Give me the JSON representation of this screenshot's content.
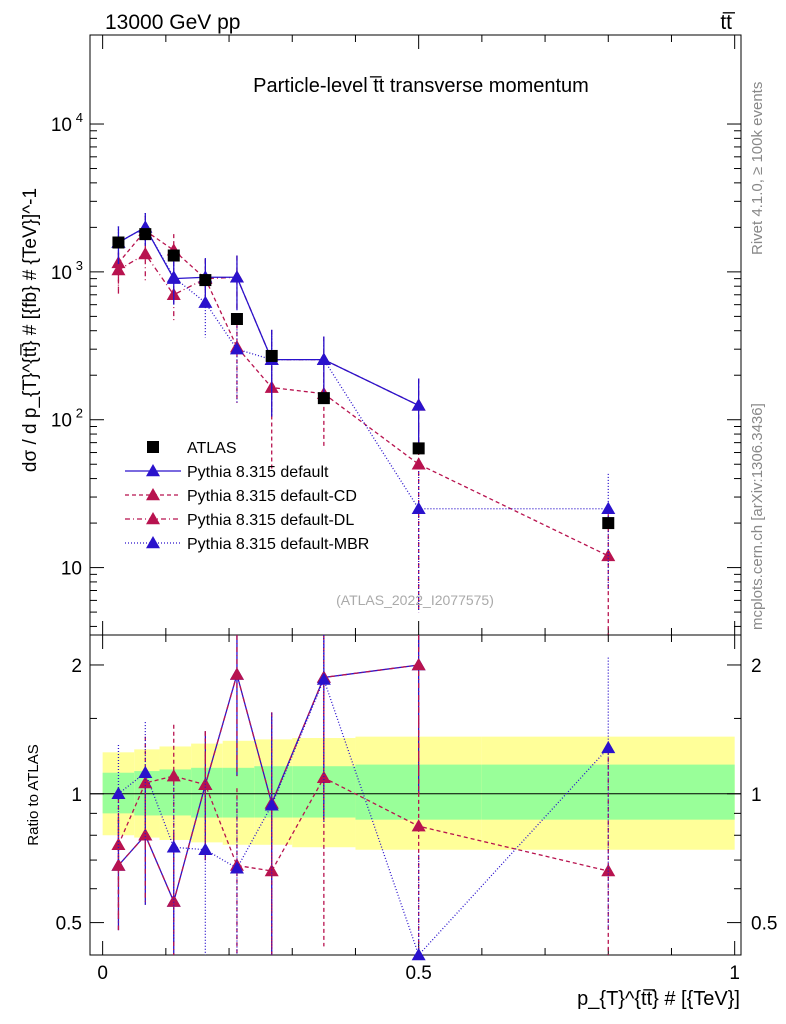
{
  "header": {
    "left": "13000 GeV pp",
    "right": "tt̅"
  },
  "side_labels": {
    "rivet": "Rivet 4.1.0, ≥ 100k events",
    "mcplots": "mcplots.cern.ch [arXiv:1306.3436]"
  },
  "chart_data": [
    {
      "type": "line",
      "panel": "main",
      "title": "Particle-level t̅t transverse momentum",
      "watermark": "(ATLAS_2022_I2077575)",
      "ylabel": "dσ / d p_{T}^{tt̅} # [{fb} # {TeV}]^-1",
      "yscale": "log",
      "ylim": [
        3.5,
        40000
      ],
      "xlim": [
        -0.02,
        1.01
      ],
      "yticks": [
        {
          "value": 10,
          "label": "10"
        },
        {
          "value": 100,
          "label": "10",
          "exp": "2"
        },
        {
          "value": 1000,
          "label": "10",
          "exp": "3"
        },
        {
          "value": 10000,
          "label": "10",
          "exp": "4"
        }
      ],
      "legend_position": "center-left",
      "series": [
        {
          "name": "ATLAS",
          "marker": "square",
          "color": "#000000",
          "dash": "none",
          "x": [
            0.025,
            0.0675,
            0.1125,
            0.1625,
            0.2125,
            0.2675,
            0.35,
            0.5,
            0.8
          ],
          "y": [
            1580,
            1800,
            1290,
            880,
            480,
            270,
            140,
            64,
            20
          ],
          "err": [
            0,
            0,
            0,
            0,
            0,
            0,
            0,
            0,
            0
          ]
        },
        {
          "name": "Pythia 8.315 default",
          "marker": "triangle",
          "color": "#2a12cc",
          "dash": "none",
          "x": [
            0.025,
            0.0675,
            0.1125,
            0.1625,
            0.2125,
            0.2675,
            0.35,
            0.5,
            0.8
          ],
          "y": [
            1580,
            2000,
            900,
            920,
            920,
            255,
            255,
            125,
            null
          ],
          "err": [
            450,
            500,
            300,
            320,
            370,
            150,
            110,
            65,
            null
          ]
        },
        {
          "name": "Pythia 8.315 default-CD",
          "marker": "triangle",
          "color": "#b8134f",
          "dash": "4,3",
          "x": [
            0.025,
            0.0675,
            0.1125,
            0.1625,
            0.2125,
            0.2675,
            0.35,
            0.5,
            0.8
          ],
          "y": [
            1150,
            1900,
            1400,
            900,
            310,
            165,
            150,
            50,
            12
          ],
          "err": [
            380,
            500,
            400,
            320,
            180,
            120,
            85,
            45,
            11
          ]
        },
        {
          "name": "Pythia 8.315 default-DL",
          "marker": "triangle",
          "color": "#b8134f",
          "dash": "5,3,1,3",
          "x": [
            0.025,
            0.0675,
            0.1125,
            0.1625,
            0.2125,
            0.2675,
            0.35,
            0.5,
            0.8
          ],
          "y": [
            1030,
            1320,
            700,
            900,
            920,
            255,
            255,
            125,
            null
          ],
          "err": [
            320,
            450,
            250,
            320,
            370,
            150,
            110,
            65,
            null
          ]
        },
        {
          "name": "Pythia 8.315 default-MBR",
          "marker": "triangle",
          "color": "#2a12cc",
          "dash": "1,2",
          "x": [
            0.025,
            0.0675,
            0.1125,
            0.1625,
            0.2125,
            0.2675,
            0.35,
            0.5,
            0.8
          ],
          "y": [
            1580,
            2000,
            920,
            620,
            300,
            255,
            255,
            25,
            25
          ],
          "err": [
            450,
            500,
            300,
            260,
            170,
            150,
            110,
            20,
            18
          ]
        }
      ]
    },
    {
      "type": "line",
      "panel": "ratio",
      "ylabel": "Ratio to ATLAS",
      "xlabel": "p_{T}^{tt̅} # [{TeV}]",
      "yscale": "log",
      "ylim": [
        0.42,
        2.35
      ],
      "xlim": [
        -0.02,
        1.01
      ],
      "xticks": [
        {
          "value": 0,
          "label": "0"
        },
        {
          "value": 0.5,
          "label": "0.5"
        },
        {
          "value": 1,
          "label": "1"
        }
      ],
      "yticks": [
        {
          "value": 0.5,
          "label": "0.5"
        },
        {
          "value": 1,
          "label": "1"
        },
        {
          "value": 2,
          "label": "2"
        }
      ],
      "bands": {
        "outer_color": "#ffff99",
        "inner_color": "#99ff99",
        "x_edges": [
          0,
          0.05,
          0.09,
          0.14,
          0.19,
          0.24,
          0.3,
          0.4,
          0.6,
          1.0
        ],
        "outer_lo": [
          0.8,
          0.79,
          0.78,
          0.77,
          0.76,
          0.76,
          0.75,
          0.74,
          0.74
        ],
        "outer_hi": [
          1.25,
          1.27,
          1.29,
          1.31,
          1.33,
          1.34,
          1.35,
          1.36,
          1.36
        ],
        "inner_lo": [
          0.9,
          0.89,
          0.89,
          0.88,
          0.88,
          0.88,
          0.88,
          0.87,
          0.87
        ],
        "inner_hi": [
          1.12,
          1.13,
          1.14,
          1.15,
          1.15,
          1.16,
          1.16,
          1.17,
          1.17
        ]
      },
      "series": [
        {
          "name": "Pythia 8.315 default",
          "color": "#2a12cc",
          "dash": "none",
          "x": [
            0.025,
            0.0675,
            0.1125,
            0.1625,
            0.2125,
            0.2675,
            0.35,
            0.5
          ],
          "y": [
            0.68,
            0.8,
            0.56,
            1.05,
            1.9,
            0.95,
            1.87,
            2.0
          ],
          "err": [
            0.2,
            0.25,
            0.25,
            0.35,
            0.8,
            0.6,
            1.0,
            1.0
          ]
        },
        {
          "name": "Pythia 8.315 default-CD",
          "color": "#b8134f",
          "dash": "4,3",
          "x": [
            0.025,
            0.0675,
            0.1125,
            0.1625,
            0.2125,
            0.2675,
            0.35,
            0.5,
            0.8
          ],
          "y": [
            0.76,
            1.06,
            1.1,
            1.05,
            0.68,
            0.66,
            1.09,
            0.84,
            0.66
          ],
          "err": [
            0.25,
            0.3,
            0.35,
            0.35,
            0.35,
            0.4,
            0.65,
            0.8,
            0.6
          ]
        },
        {
          "name": "Pythia 8.315 default-DL",
          "color": "#b8134f",
          "dash": "5,3,1,3",
          "x": [
            0.025,
            0.0675,
            0.1125,
            0.1625,
            0.2125,
            0.2675,
            0.35,
            0.5
          ],
          "y": [
            0.68,
            0.8,
            0.56,
            1.05,
            1.9,
            0.95,
            1.87,
            2.0
          ],
          "err": [
            0.2,
            0.25,
            0.25,
            0.35,
            0.8,
            0.6,
            1.0,
            1.0
          ]
        },
        {
          "name": "Pythia 8.315 default-MBR",
          "color": "#2a12cc",
          "dash": "1,2",
          "x": [
            0.025,
            0.0675,
            0.1125,
            0.1625,
            0.2125,
            0.2675,
            0.35,
            0.5,
            0.8
          ],
          "y": [
            1.0,
            1.12,
            0.75,
            0.74,
            0.67,
            0.94,
            1.85,
            0.42,
            1.28
          ],
          "err": [
            0.3,
            0.35,
            0.3,
            0.35,
            0.3,
            0.6,
            1.0,
            0.3,
            0.8
          ]
        }
      ]
    }
  ]
}
